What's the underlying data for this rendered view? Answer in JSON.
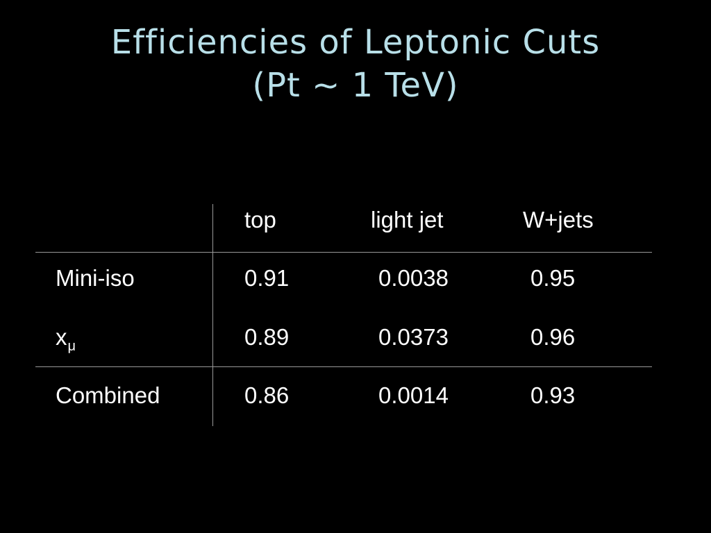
{
  "title": {
    "line1": "Efficiencies of Leptonic Cuts",
    "line2": "(Pt ~ 1 TeV)"
  },
  "table": {
    "columns": [
      "top",
      "light jet",
      "W+jets"
    ],
    "rows": [
      {
        "label": "Mini-iso",
        "label_sub": "",
        "values": [
          "0.91",
          "0.0038",
          "0.95"
        ]
      },
      {
        "label": "x",
        "label_sub": "μ",
        "values": [
          "0.89",
          "0.0373",
          "0.96"
        ]
      },
      {
        "label": "Combined",
        "label_sub": "",
        "values": [
          "0.86",
          "0.0014",
          "0.93"
        ]
      }
    ]
  },
  "colors": {
    "background": "#000000",
    "title": "#b8dfe8",
    "text": "#ffffff",
    "rule": "#9a9a9a"
  }
}
